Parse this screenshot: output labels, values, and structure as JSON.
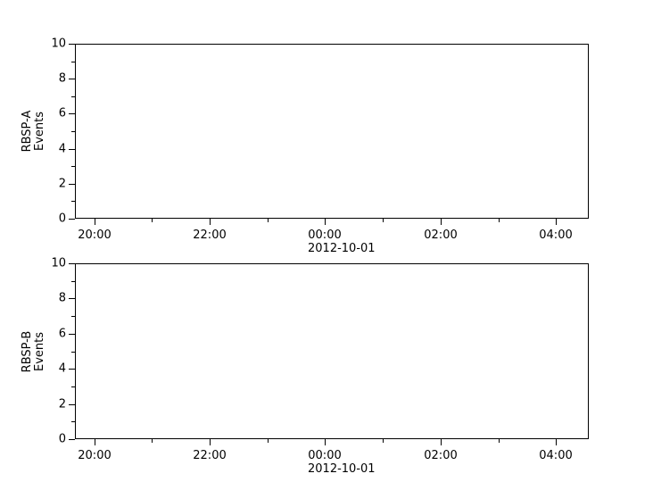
{
  "figure": {
    "background": "#ffffff",
    "axis_color": "#000000",
    "text_color": "#000000"
  },
  "chart_data": [
    {
      "type": "line",
      "title": "",
      "ylabel_lines": [
        "RBSP-A",
        "Events"
      ],
      "ylim": [
        0,
        10
      ],
      "y_major_ticks": [
        0,
        2,
        4,
        6,
        8,
        10
      ],
      "y_minor_ticks": [
        1,
        3,
        5,
        7,
        9
      ],
      "grid": false,
      "legend": false,
      "x_axis": {
        "date_label": "2012-10-01",
        "start_minutes_from_midnight": -260,
        "end_minutes_from_midnight": 274,
        "major_ticks": [
          {
            "minutes": -240,
            "label": "20:00"
          },
          {
            "minutes": -120,
            "label": "22:00"
          },
          {
            "minutes": 0,
            "label": "00:00",
            "sublabel": "2012-10-01"
          },
          {
            "minutes": 120,
            "label": "02:00"
          },
          {
            "minutes": 240,
            "label": "04:00"
          }
        ],
        "minor_ticks_minutes": [
          -180,
          -60,
          60,
          180
        ]
      },
      "series": []
    },
    {
      "type": "line",
      "title": "",
      "ylabel_lines": [
        "RBSP-B",
        "Events"
      ],
      "ylim": [
        0,
        10
      ],
      "y_major_ticks": [
        0,
        2,
        4,
        6,
        8,
        10
      ],
      "y_minor_ticks": [
        1,
        3,
        5,
        7,
        9
      ],
      "grid": false,
      "legend": false,
      "x_axis": {
        "date_label": "2012-10-01",
        "start_minutes_from_midnight": -260,
        "end_minutes_from_midnight": 274,
        "major_ticks": [
          {
            "minutes": -240,
            "label": "20:00"
          },
          {
            "minutes": -120,
            "label": "22:00"
          },
          {
            "minutes": 0,
            "label": "00:00",
            "sublabel": "2012-10-01"
          },
          {
            "minutes": 120,
            "label": "02:00"
          },
          {
            "minutes": 240,
            "label": "04:00"
          }
        ],
        "minor_ticks_minutes": [
          -180,
          -60,
          60,
          180
        ]
      },
      "series": []
    }
  ]
}
